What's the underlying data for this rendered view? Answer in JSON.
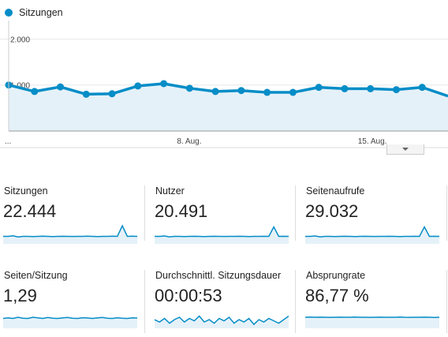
{
  "legend": {
    "label": "Sitzungen",
    "color": "#058dc7"
  },
  "chart_data": {
    "type": "area",
    "series": [
      {
        "name": "Sitzungen",
        "values": [
          1000,
          860,
          960,
          800,
          810,
          980,
          1030,
          930,
          860,
          880,
          840,
          840,
          950,
          920,
          920,
          900,
          950,
          760
        ]
      }
    ],
    "ytick_labels": [
      "2.000",
      "1.000"
    ],
    "yticks": [
      2000,
      1000
    ],
    "ylim": [
      0,
      2300
    ],
    "xtick_labels": [
      "...",
      "8. Aug.",
      "15. Aug."
    ],
    "grid": true,
    "color": "#058dc7",
    "fill": "#e5f1f8"
  },
  "metrics": [
    {
      "name": "Sitzungen",
      "value": "22.444",
      "spark": [
        5,
        5,
        5.5,
        4.5,
        5,
        5,
        4.8,
        5,
        5.2,
        5,
        4.8,
        5,
        5.1,
        5,
        4.9,
        5,
        5,
        5.2,
        5,
        4.8,
        5,
        5,
        5.2,
        5,
        14,
        5,
        5.2,
        5
      ]
    },
    {
      "name": "Nutzer",
      "value": "20.491",
      "spark": [
        5,
        5,
        5.3,
        4.6,
        5,
        5,
        4.8,
        5,
        5.1,
        5,
        4.8,
        5,
        5.1,
        5,
        4.9,
        5,
        5,
        5.1,
        5,
        4.8,
        5,
        5,
        5.1,
        5,
        13,
        5,
        5.1,
        5
      ]
    },
    {
      "name": "Seitenaufrufe",
      "value": "29.032",
      "spark": [
        5,
        5,
        5.3,
        4.6,
        5,
        5,
        4.8,
        5,
        5.1,
        5,
        4.8,
        5,
        5.1,
        5,
        4.9,
        5,
        5,
        5.1,
        5,
        4.8,
        5,
        5,
        5.1,
        5,
        13,
        5,
        5.1,
        5
      ]
    },
    {
      "name": "Seiten/Sitzung",
      "value": "1,29",
      "spark": [
        7,
        7.5,
        7,
        8,
        7.2,
        7,
        8,
        7.5,
        7,
        7.8,
        7.2,
        7,
        7.5,
        7.8,
        7.2,
        7,
        7.6,
        7.4,
        7,
        7.5,
        7.8,
        7.2,
        7,
        7.6,
        7.2,
        7,
        7.5,
        7.3
      ]
    },
    {
      "name": "Durchschnittl. Sitzungsdauer",
      "value": "00:00:53",
      "spark": [
        6,
        4,
        7,
        3,
        6,
        8,
        4,
        7,
        5,
        9,
        4,
        6,
        3,
        7,
        5,
        8,
        3,
        6,
        4,
        7,
        2,
        6,
        4,
        7,
        5,
        3,
        6,
        9
      ]
    },
    {
      "name": "Absprungrate",
      "value": "86,77 %",
      "spark": [
        8,
        8.2,
        8,
        8.1,
        8,
        7.9,
        8,
        8.1,
        8,
        8,
        8.2,
        8,
        8,
        7.9,
        8,
        8.1,
        8,
        8,
        8,
        8.2,
        8,
        7.9,
        8,
        8,
        8.1,
        8,
        7.8,
        8
      ]
    }
  ]
}
